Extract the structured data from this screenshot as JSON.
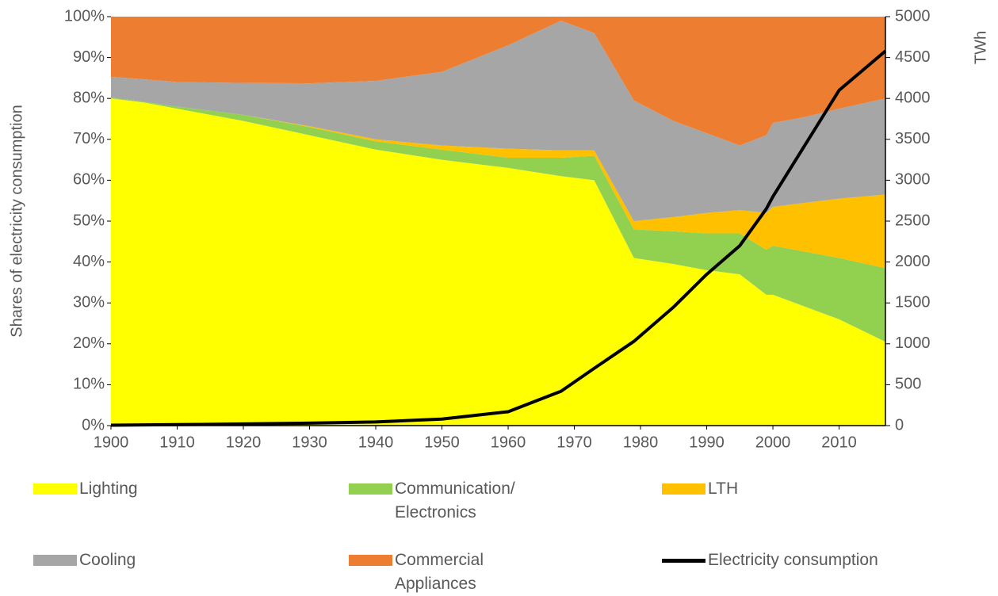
{
  "chart_data": {
    "type": "stacked_area",
    "x": [
      1900,
      1905,
      1910,
      1920,
      1930,
      1940,
      1950,
      1960,
      1968,
      1973,
      1979,
      1985,
      1990,
      1995,
      1999,
      2000,
      2005,
      2010,
      2017
    ],
    "series": [
      {
        "name": "Lighting",
        "color": "#ffff00",
        "values": [
          80,
          79,
          77.5,
          74.5,
          71,
          67.5,
          65,
          63,
          61,
          60,
          41,
          39.5,
          38,
          37,
          32,
          32,
          29,
          26,
          20.5
        ]
      },
      {
        "name": "Communication/ Electronics",
        "color": "#92d050",
        "values": [
          0.2,
          0.2,
          0.5,
          1.5,
          2,
          2,
          2.5,
          2.5,
          4.5,
          6,
          7,
          8,
          9,
          10,
          11,
          12,
          13.5,
          15,
          18
        ]
      },
      {
        "name": "LTH",
        "color": "#ffc000",
        "values": [
          0,
          0,
          0,
          0,
          0.2,
          0.5,
          1,
          2.2,
          1.8,
          1.3,
          2,
          3.5,
          5,
          5.7,
          9,
          9.5,
          12,
          14.5,
          18
        ]
      },
      {
        "name": "Cooling",
        "color": "#a6a6a6",
        "values": [
          5.1,
          5.5,
          6,
          7.8,
          10.5,
          14.3,
          18,
          25.3,
          31.7,
          28.7,
          29.5,
          23.5,
          19.5,
          15.8,
          19,
          20.5,
          21,
          22,
          23.5
        ]
      },
      {
        "name": "Commercial Appliances",
        "color": "#ed7d31",
        "values": [
          14.7,
          15.3,
          16,
          16.2,
          16.3,
          15.7,
          13.5,
          7,
          1,
          4,
          20.5,
          25.5,
          28.5,
          31.5,
          29,
          26,
          24.5,
          22.5,
          20
        ]
      },
      {
        "name": "Electricity consumption",
        "color": "#000000",
        "type": "line",
        "axis": "y2",
        "values": [
          5,
          8,
          12,
          20,
          30,
          45,
          80,
          170,
          420,
          700,
          1030,
          1450,
          1850,
          2200,
          2650,
          2800,
          3450,
          4100,
          4580
        ]
      }
    ],
    "ylabel": "Shares of electricity consumption",
    "y2label": "TWh",
    "xlim": [
      1900,
      2017
    ],
    "xticks": [
      1900,
      1910,
      1920,
      1930,
      1940,
      1950,
      1960,
      1970,
      1980,
      1990,
      2000,
      2010
    ],
    "ylim": [
      0,
      100
    ],
    "yticks": [
      {
        "value": 0,
        "label": "0%"
      },
      {
        "value": 10,
        "label": "10%"
      },
      {
        "value": 20,
        "label": "20%"
      },
      {
        "value": 30,
        "label": "30%"
      },
      {
        "value": 40,
        "label": "40%"
      },
      {
        "value": 50,
        "label": "50%"
      },
      {
        "value": 60,
        "label": "60%"
      },
      {
        "value": 70,
        "label": "70%"
      },
      {
        "value": 80,
        "label": "80%"
      },
      {
        "value": 90,
        "label": "90%"
      },
      {
        "value": 100,
        "label": "100%"
      }
    ],
    "y2lim": [
      0,
      5000
    ],
    "y2ticks": [
      0,
      500,
      1000,
      1500,
      2000,
      2500,
      3000,
      3500,
      4000,
      4500,
      5000
    ],
    "legend": "bottom"
  }
}
